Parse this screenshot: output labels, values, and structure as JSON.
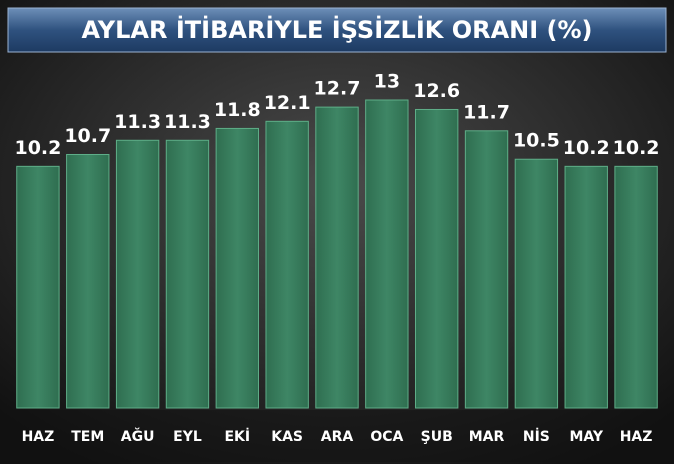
{
  "chart_data": {
    "type": "bar",
    "title": "AYLAR İTİBARİYLE İŞSİZLİK ORANI (%)",
    "categories": [
      "HAZ",
      "TEM",
      "AĞU",
      "EYL",
      "EKİ",
      "KAS",
      "ARA",
      "OCA",
      "ŞUB",
      "MAR",
      "NİS",
      "MAY",
      "HAZ"
    ],
    "values": [
      10.2,
      10.7,
      11.3,
      11.3,
      11.8,
      12.1,
      12.7,
      13,
      12.6,
      11.7,
      10.5,
      10.2,
      10.2
    ],
    "color": "#3e8665",
    "ylim": [
      0,
      13
    ]
  }
}
